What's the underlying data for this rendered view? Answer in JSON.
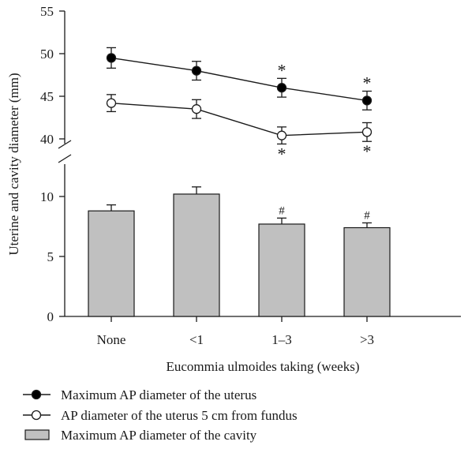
{
  "chart_data": {
    "type": "bar+line",
    "title": "",
    "xlabel": "Eucommia ulmoides taking (weeks)",
    "ylabel": "Uterine and cavity diameter (mm)",
    "categories": [
      "None",
      "<1",
      "1–3",
      ">3"
    ],
    "axis_break": {
      "lower_range": [
        0,
        12
      ],
      "upper_range": [
        38,
        55
      ]
    },
    "y_ticks_lower": [
      "0",
      "5",
      "10"
    ],
    "y_ticks_upper": [
      "40",
      "45",
      "50",
      "55"
    ],
    "bars": {
      "name": "Maximum AP diameter of the cavity",
      "values": [
        8.8,
        10.2,
        7.7,
        7.4
      ],
      "errors": [
        0.5,
        0.6,
        0.5,
        0.4
      ],
      "color": "#c0c0c0",
      "annotations": [
        "",
        "",
        "#",
        "#"
      ]
    },
    "series": [
      {
        "name": "Maximum AP diameter of the uterus",
        "values": [
          49.5,
          48.0,
          46.0,
          44.5
        ],
        "errors": [
          1.2,
          1.1,
          1.1,
          1.1
        ],
        "marker": "filled-circle",
        "annotations_above": [
          "",
          "",
          "*",
          "*"
        ]
      },
      {
        "name": "AP diameter of the uterus 5 cm from fundus",
        "values": [
          44.2,
          43.5,
          40.4,
          40.8
        ],
        "errors": [
          1.0,
          1.1,
          1.0,
          1.1
        ],
        "marker": "open-circle",
        "annotations_below": [
          "",
          "",
          "*",
          "*"
        ]
      }
    ],
    "legend": {
      "placement": "bottom-left",
      "entries": [
        "Maximum AP diameter of the uterus",
        "AP diameter of the uterus 5 cm from fundus",
        "Maximum AP diameter of the cavity"
      ]
    },
    "grid": false
  }
}
